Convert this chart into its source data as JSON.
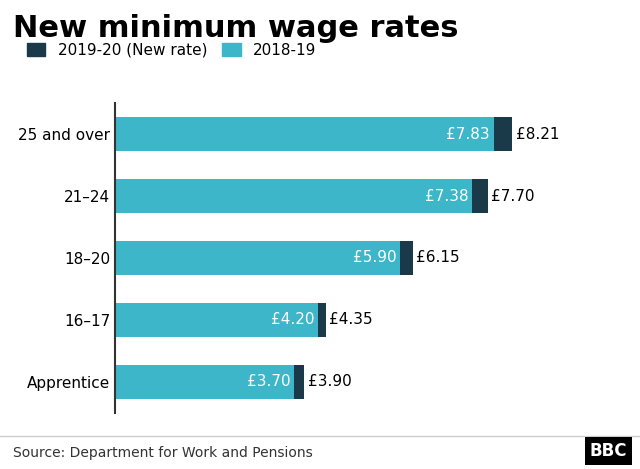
{
  "title": "New minimum wage rates",
  "categories": [
    "25 and over",
    "21–24",
    "18–20",
    "16–17",
    "Apprentice"
  ],
  "old_values": [
    7.83,
    7.38,
    5.9,
    4.2,
    3.7
  ],
  "new_values": [
    8.21,
    7.7,
    6.15,
    4.35,
    3.9
  ],
  "old_labels": [
    "£7.83",
    "£7.38",
    "£5.90",
    "£4.20",
    "£3.70"
  ],
  "new_labels": [
    "£8.21",
    "£7.70",
    "£6.15",
    "£4.35",
    "£3.90"
  ],
  "color_old": "#3cb6c8",
  "color_new": "#1a3a4a",
  "legend_old": "2018-19",
  "legend_new": "2019-20 (New rate)",
  "source": "Source: Department for Work and Pensions",
  "bbc_text": "BBC",
  "background": "#ffffff",
  "xlim": [
    0,
    9.0
  ],
  "bar_height": 0.55,
  "title_fontsize": 22,
  "label_fontsize": 11,
  "tick_fontsize": 11,
  "legend_fontsize": 11,
  "source_fontsize": 10
}
